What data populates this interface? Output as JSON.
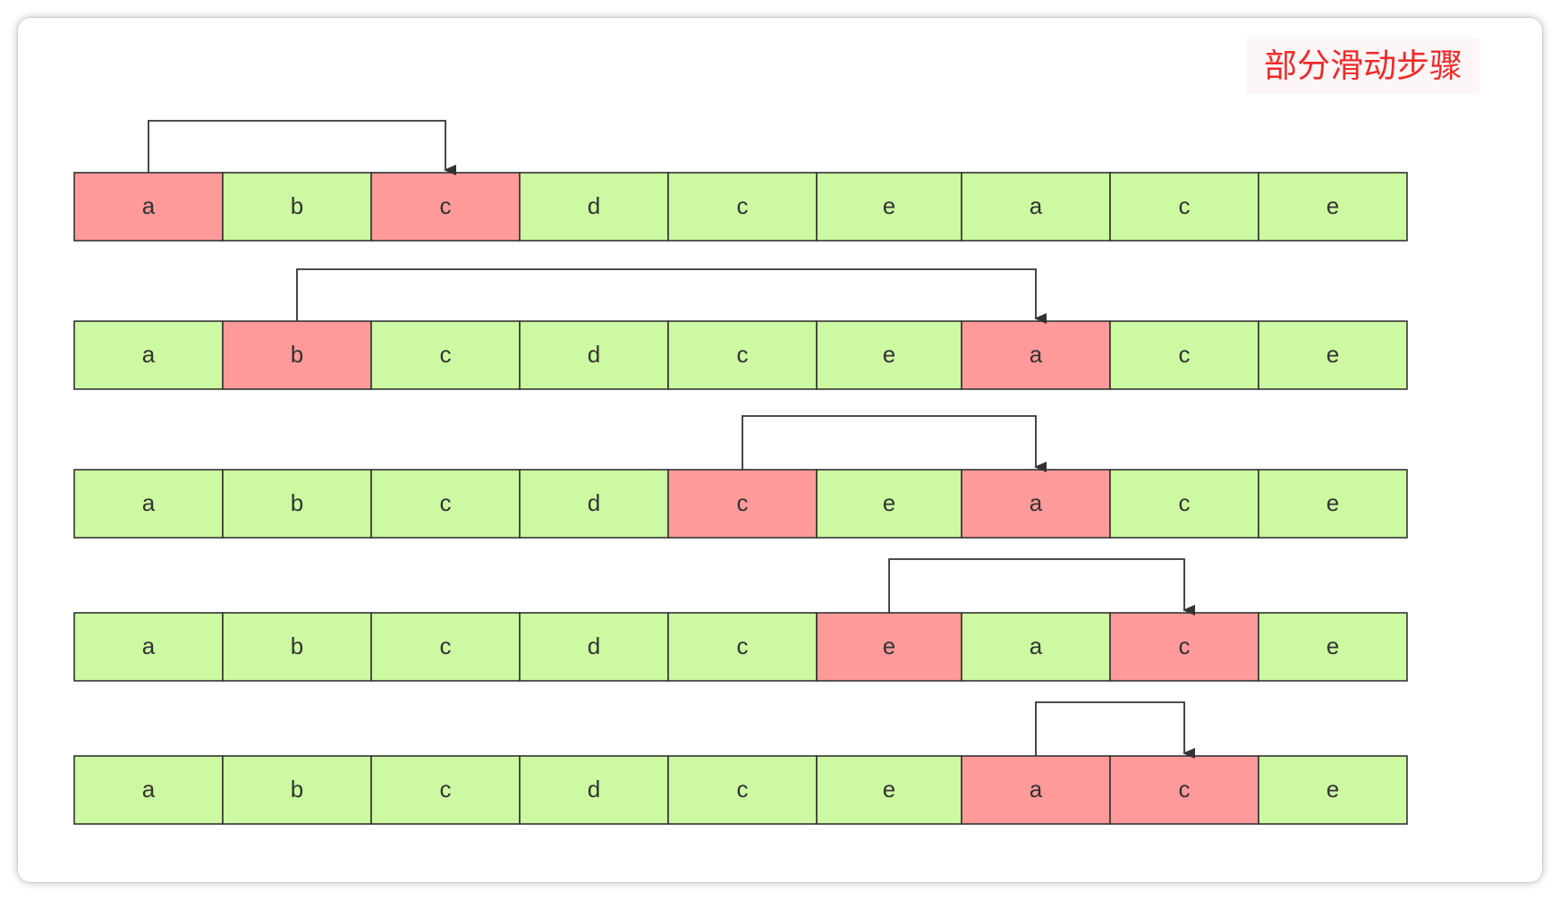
{
  "title": "部分滑动步骤",
  "colors": {
    "highlight": "#fe9a9a",
    "normal": "#ccf9a1",
    "stroke": "#333333",
    "title": "#f02a2a"
  },
  "rows": [
    {
      "cells": [
        "a",
        "b",
        "c",
        "d",
        "c",
        "e",
        "a",
        "c",
        "e"
      ],
      "highlight": [
        0,
        2
      ],
      "arrow": {
        "from": 0,
        "to": 2
      }
    },
    {
      "cells": [
        "a",
        "b",
        "c",
        "d",
        "c",
        "e",
        "a",
        "c",
        "e"
      ],
      "highlight": [
        1,
        6
      ],
      "arrow": {
        "from": 1,
        "to": 6
      }
    },
    {
      "cells": [
        "a",
        "b",
        "c",
        "d",
        "c",
        "e",
        "a",
        "c",
        "e"
      ],
      "highlight": [
        4,
        6
      ],
      "arrow": {
        "from": 4,
        "to": 6
      }
    },
    {
      "cells": [
        "a",
        "b",
        "c",
        "d",
        "c",
        "e",
        "a",
        "c",
        "e"
      ],
      "highlight": [
        5,
        7
      ],
      "arrow": {
        "from": 5,
        "to": 7
      }
    },
    {
      "cells": [
        "a",
        "b",
        "c",
        "d",
        "c",
        "e",
        "a",
        "c",
        "e"
      ],
      "highlight": [
        6,
        7
      ],
      "arrow": {
        "from": 6,
        "to": 7
      }
    }
  ]
}
